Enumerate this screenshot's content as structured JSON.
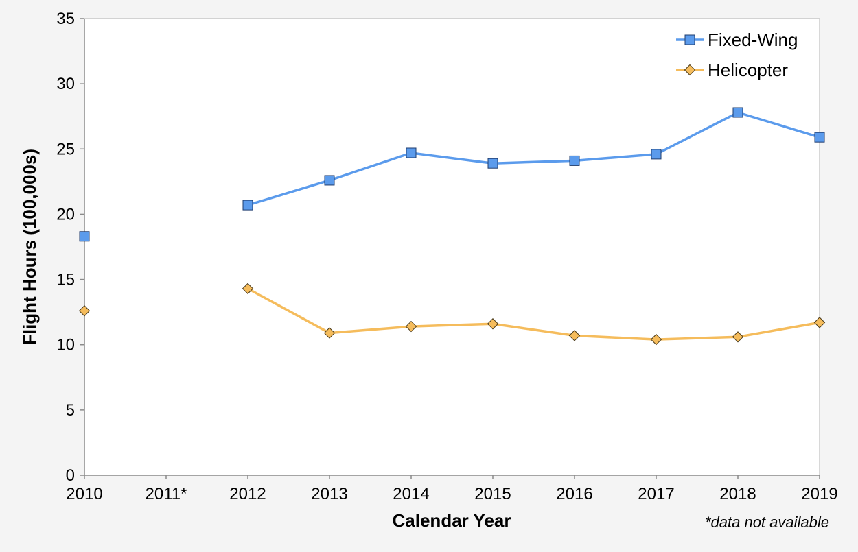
{
  "chart_data": {
    "type": "line",
    "categories": [
      "2010",
      "2011*",
      "2012",
      "2013",
      "2014",
      "2015",
      "2016",
      "2017",
      "2018",
      "2019"
    ],
    "ylim": [
      0,
      35
    ],
    "yticks": [
      0,
      5,
      10,
      15,
      20,
      25,
      30,
      35
    ],
    "xlabel": "Calendar Year",
    "ylabel": "Flight Hours (100,000s)",
    "footnote": "*data not available",
    "legend_position": "top-right",
    "grid": false,
    "series": [
      {
        "name": "Fixed-Wing",
        "color": "#5b9bec",
        "marker": "square",
        "values": [
          18.3,
          null,
          20.7,
          22.6,
          24.7,
          23.9,
          24.1,
          24.6,
          27.8,
          25.9
        ]
      },
      {
        "name": "Helicopter",
        "color": "#f5bc5c",
        "marker": "diamond",
        "values": [
          12.6,
          null,
          14.3,
          10.9,
          11.4,
          11.6,
          10.7,
          10.4,
          10.6,
          11.7
        ]
      }
    ]
  }
}
